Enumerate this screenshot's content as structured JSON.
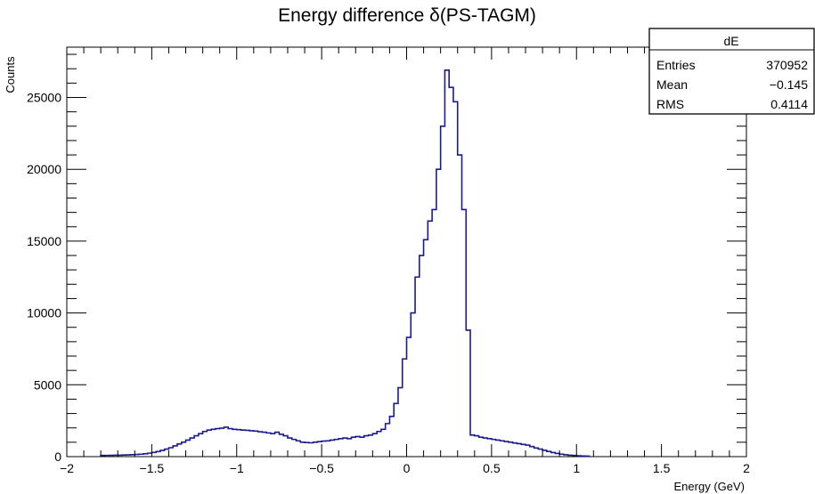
{
  "chart_data": {
    "type": "histogram",
    "title": "Energy difference δ(PS-TAGM)",
    "xlabel": "Energy (GeV)",
    "ylabel": "Counts",
    "y_multiplier_label": "",
    "xlim": [
      -2,
      2
    ],
    "ylim": [
      0,
      28500
    ],
    "x_ticks": [
      -2,
      -1.5,
      -1,
      -0.5,
      0,
      0.5,
      1,
      1.5,
      2
    ],
    "x_tick_labels": [
      "−2",
      "−1.5",
      "−1",
      "−0.5",
      "0",
      "0.5",
      "1",
      "1.5",
      "2"
    ],
    "y_ticks": [
      0,
      5000,
      10000,
      15000,
      20000,
      25000
    ],
    "y_tick_labels": [
      "0",
      "5000",
      "10000",
      "15000",
      "20000",
      "25000"
    ],
    "bin_edges_start": -1.8,
    "bin_width": 0.025,
    "series": [
      {
        "name": "dE",
        "color": "#1a1a8c",
        "values": [
          80,
          85,
          90,
          95,
          100,
          110,
          120,
          135,
          150,
          170,
          200,
          240,
          290,
          350,
          430,
          520,
          620,
          750,
          880,
          1000,
          1150,
          1300,
          1450,
          1600,
          1750,
          1850,
          1900,
          1950,
          1980,
          2050,
          1950,
          1900,
          1880,
          1850,
          1830,
          1800,
          1780,
          1730,
          1700,
          1650,
          1600,
          1700,
          1550,
          1450,
          1300,
          1200,
          1100,
          1000,
          980,
          960,
          1000,
          1040,
          1080,
          1100,
          1150,
          1200,
          1250,
          1300,
          1250,
          1350,
          1400,
          1350,
          1450,
          1500,
          1600,
          1750,
          1900,
          2300,
          2800,
          3700,
          4800,
          6800,
          8300,
          10000,
          12500,
          14000,
          15100,
          16400,
          17200,
          20000,
          23000,
          26900,
          25700,
          24700,
          21000,
          17200,
          8800,
          1500,
          1450,
          1350,
          1300,
          1250,
          1200,
          1150,
          1100,
          1050,
          1000,
          950,
          900,
          850,
          800,
          700,
          600,
          520,
          440,
          360,
          280,
          220,
          170,
          130,
          100,
          80,
          60,
          45,
          35
        ]
      }
    ],
    "stats": {
      "name": "dE",
      "rows": [
        {
          "label": "Entries",
          "value": "370952"
        },
        {
          "label": "Mean",
          "value": "−0.145"
        },
        {
          "label": "RMS",
          "value": "0.4114"
        }
      ]
    },
    "grid": false,
    "legend": "top-right"
  }
}
